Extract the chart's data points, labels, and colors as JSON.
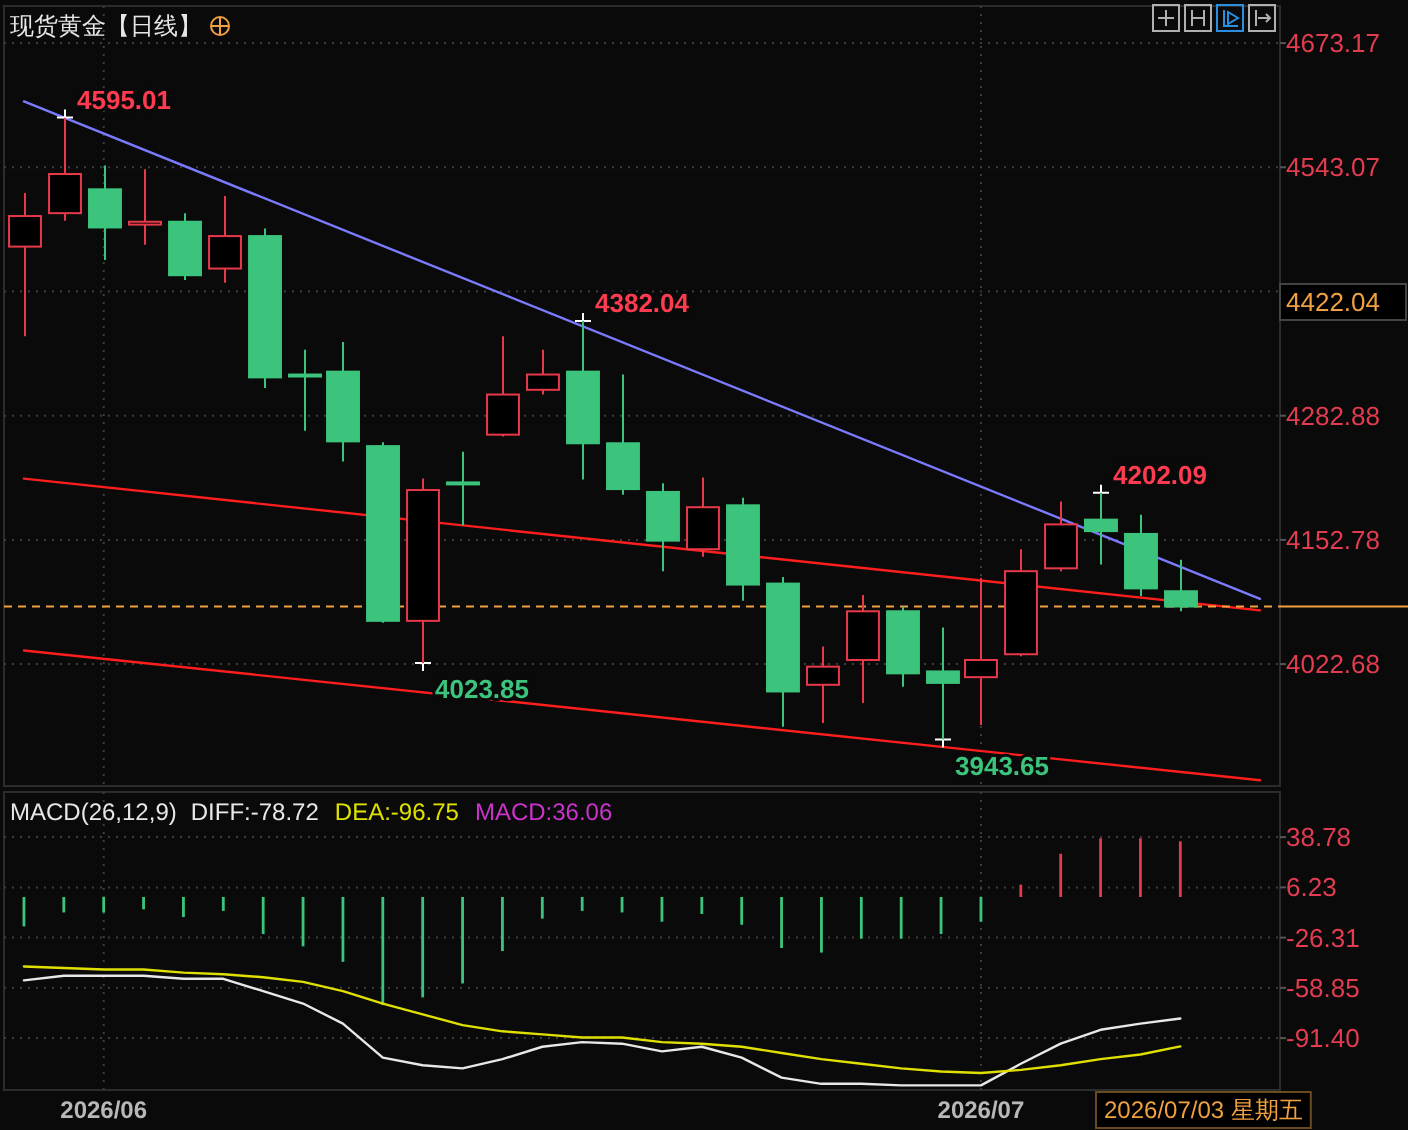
{
  "chart_data": [
    {
      "type": "candlestick",
      "title": "现货黄金【日线】",
      "categories": [
        null,
        null,
        "2026/06",
        null,
        null,
        null,
        null,
        null,
        null,
        null,
        null,
        null,
        null,
        null,
        null,
        null,
        null,
        null,
        null,
        null,
        null,
        null,
        null,
        null,
        "2026/07",
        null,
        null,
        null,
        null,
        null,
        null,
        null
      ],
      "ohlc": [
        [
          4460,
          4516,
          4366,
          4492
        ],
        [
          4495,
          4595.01,
          4487,
          4536
        ],
        [
          4520,
          4545,
          4446,
          4480
        ],
        [
          4483,
          4541,
          4462,
          4486
        ],
        [
          4486,
          4495,
          4425,
          4430
        ],
        [
          4437,
          4513,
          4422,
          4471
        ],
        [
          4471,
          4479,
          4312,
          4323
        ],
        [
          4326,
          4352,
          4267,
          4324
        ],
        [
          4329,
          4360,
          4235,
          4256
        ],
        [
          4251,
          4255,
          4066,
          4068
        ],
        [
          4068,
          4217,
          4023.85,
          4205
        ],
        [
          4213,
          4245,
          4168,
          4211
        ],
        [
          4263,
          4366,
          4261,
          4305
        ],
        [
          4310,
          4352,
          4305,
          4326
        ],
        [
          4329,
          4382.04,
          4216,
          4254
        ],
        [
          4254,
          4326,
          4200,
          4206
        ],
        [
          4203,
          4212,
          4120,
          4152
        ],
        [
          4143,
          4218,
          4135,
          4187
        ],
        [
          4189,
          4197,
          4089,
          4106
        ],
        [
          4107,
          4114,
          3957,
          3994
        ],
        [
          4001,
          4041,
          3961,
          4020
        ],
        [
          4027,
          4095,
          3982,
          4078
        ],
        [
          4078,
          4083,
          3999,
          4013
        ],
        [
          4015,
          4061,
          3943.65,
          4003
        ],
        [
          4009,
          4113,
          3959,
          4027
        ],
        [
          4033,
          4143,
          4031,
          4120
        ],
        [
          4123,
          4193,
          4120,
          4169
        ],
        [
          4174,
          4202.09,
          4127,
          4162
        ],
        [
          4159,
          4179,
          4094,
          4102
        ],
        [
          4099,
          4132,
          4078,
          4083
        ],
        null,
        null
      ],
      "series": [
        {
          "type": "line",
          "color": "#7b7bff",
          "values": [
            4612,
            null,
            null,
            null,
            null,
            null,
            null,
            null,
            null,
            null,
            null,
            null,
            null,
            null,
            null,
            null,
            null,
            null,
            null,
            null,
            null,
            null,
            null,
            null,
            null,
            null,
            null,
            null,
            null,
            null,
            null,
            4091
          ]
        },
        {
          "type": "line",
          "color": "#ff1e1e",
          "values": [
            4217,
            null,
            null,
            null,
            null,
            null,
            null,
            null,
            null,
            null,
            null,
            null,
            null,
            null,
            null,
            null,
            null,
            null,
            null,
            null,
            null,
            null,
            null,
            null,
            null,
            null,
            null,
            null,
            null,
            null,
            null,
            4079
          ]
        },
        {
          "type": "line",
          "color": "#ff1e1e",
          "values": [
            4037,
            null,
            null,
            null,
            null,
            null,
            null,
            null,
            null,
            null,
            null,
            null,
            null,
            null,
            null,
            null,
            null,
            null,
            null,
            null,
            null,
            null,
            null,
            null,
            null,
            null,
            null,
            null,
            null,
            null,
            null,
            3901
          ]
        }
      ],
      "ref_lines": [
        {
          "axis": "y",
          "value": 4083,
          "color": "#f0a040",
          "line_style": "dashed"
        }
      ],
      "ylim": [
        3895,
        4712
      ],
      "yticks": [
        4022.68,
        4152.78,
        4282.88,
        {
          "value": 4412.97,
          "label": null
        },
        4543.07,
        4673.17
      ],
      "grid": true,
      "tick_labels": "y",
      "annotations": [
        "4422.04",
        "4595.01",
        "4382.04",
        "4023.85",
        "3943.65",
        "4202.09"
      ]
    },
    {
      "type": "bar",
      "title": "MACD(26,12,9)",
      "categories": [
        null,
        null,
        "2026/06",
        null,
        null,
        null,
        null,
        null,
        null,
        null,
        null,
        null,
        null,
        null,
        null,
        null,
        null,
        null,
        null,
        null,
        null,
        null,
        null,
        null,
        "2026/07",
        null,
        null,
        null,
        null,
        null,
        null,
        null
      ],
      "series": [
        {
          "name": "DIFF:-78.72",
          "type": "line",
          "color": "#e8e8e8",
          "values": [
            -54,
            -51,
            -51,
            -51,
            -53,
            -53,
            -61,
            -69,
            -82,
            -104,
            -109,
            -111,
            -105,
            -97,
            -94,
            -95,
            -100,
            -97,
            -104,
            -117,
            -121,
            -121,
            -122,
            -122,
            -122,
            -108,
            -95,
            -86,
            -82,
            -78.72,
            null,
            null
          ]
        },
        {
          "name": "DEA:-96.75",
          "type": "line",
          "color": "#e0e000",
          "values": [
            -45,
            -46,
            -47,
            -47,
            -49,
            -50,
            -52,
            -55,
            -61,
            -69,
            -76,
            -83,
            -87,
            -89,
            -91,
            -91,
            -94,
            -95,
            -97,
            -101,
            -105,
            -108,
            -111,
            -113,
            -114,
            -112,
            -109,
            -105,
            -102,
            -96.75,
            null,
            null
          ]
        },
        {
          "name": "MACD:36.06",
          "type": "bar",
          "color": "#cc33cc",
          "colors": [
            "#3cc47c",
            "#3cc47c",
            "#3cc47c",
            "#3cc47c",
            "#3cc47c",
            "#3cc47c",
            "#3cc47c",
            "#3cc47c",
            "#3cc47c",
            "#3cc47c",
            "#3cc47c",
            "#3cc47c",
            "#3cc47c",
            "#3cc47c",
            "#3cc47c",
            "#3cc47c",
            "#3cc47c",
            "#3cc47c",
            "#3cc47c",
            "#3cc47c",
            "#3cc47c",
            "#3cc47c",
            "#3cc47c",
            "#3cc47c",
            "#3cc47c",
            "#e8394a",
            "#e8394a",
            "#e8394a",
            "#e8394a",
            "#e8394a",
            null,
            null
          ],
          "values": [
            -19,
            -10,
            -10,
            -8,
            -13,
            -9,
            -24,
            -32,
            -42,
            -70,
            -65,
            -56,
            -35,
            -14,
            -9,
            -10,
            -16,
            -11,
            -18,
            -33,
            -36,
            -27,
            -27,
            -24,
            -16,
            8,
            28,
            38,
            38,
            36.06,
            null,
            null
          ]
        }
      ],
      "ylim": [
        -125,
        68
      ],
      "yticks": [
        {
          "value": -91.4,
          "label": "-91.40"
        },
        -58.85,
        -26.31,
        6.23,
        38.78
      ],
      "grid": true,
      "legend": "top left",
      "annotations": [
        "2026/07/03 星期五"
      ]
    }
  ]
}
